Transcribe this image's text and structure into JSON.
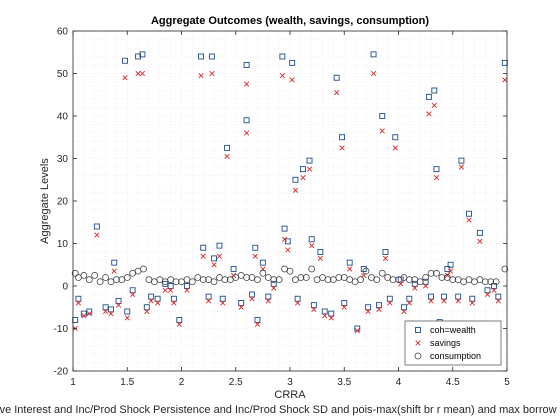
{
  "chart_data": {
    "type": "scatter",
    "title": "Aggregate Outcomes (wealth, savings, consumption)",
    "xlabel": "CRRA",
    "subxlabel": "ave Interest and Inc/Prod Shock Persistence and Inc/Prod Shock SD and pois-max(shift br r mean) and max borrow",
    "ylabel": "Aggregate Levels",
    "xlim": [
      1,
      5
    ],
    "ylim": [
      -20,
      60
    ],
    "xticks": [
      1,
      1.5,
      2,
      2.5,
      3,
      3.5,
      4,
      4.5,
      5
    ],
    "xtick_labels": [
      "1",
      "1.5",
      "2",
      "2.5",
      "3",
      "3.5",
      "4",
      "4.5",
      "5"
    ],
    "yticks": [
      -20,
      -10,
      0,
      10,
      20,
      30,
      40,
      50,
      60
    ],
    "ytick_labels": [
      "-20",
      "-10",
      "0",
      "10",
      "20",
      "30",
      "40",
      "50",
      "60"
    ],
    "grid": true,
    "legend_position": "bottom-right",
    "series": [
      {
        "name": "coh=wealth",
        "marker": "square",
        "color": "#1f4e8c",
        "points": [
          [
            1.02,
            -8
          ],
          [
            1.05,
            -3
          ],
          [
            1.1,
            -6.5
          ],
          [
            1.15,
            -6
          ],
          [
            1.22,
            14
          ],
          [
            1.3,
            -5
          ],
          [
            1.35,
            -5.5
          ],
          [
            1.38,
            5.5
          ],
          [
            1.42,
            -3.5
          ],
          [
            1.48,
            53
          ],
          [
            1.5,
            -6
          ],
          [
            1.55,
            -1
          ],
          [
            1.6,
            54
          ],
          [
            1.64,
            54.5
          ],
          [
            1.68,
            -5
          ],
          [
            1.72,
            -2.5
          ],
          [
            1.78,
            -3
          ],
          [
            1.85,
            0.5
          ],
          [
            1.9,
            0
          ],
          [
            1.93,
            -3
          ],
          [
            1.98,
            -8
          ],
          [
            2.05,
            0
          ],
          [
            2.18,
            54
          ],
          [
            2.2,
            9
          ],
          [
            2.25,
            -2.5
          ],
          [
            2.28,
            54
          ],
          [
            2.3,
            6.5
          ],
          [
            2.35,
            9.5
          ],
          [
            2.38,
            -3
          ],
          [
            2.42,
            32.5
          ],
          [
            2.48,
            4
          ],
          [
            2.55,
            -4
          ],
          [
            2.6,
            52
          ],
          [
            2.6,
            39
          ],
          [
            2.65,
            -2
          ],
          [
            2.68,
            9
          ],
          [
            2.7,
            -8
          ],
          [
            2.75,
            5.5
          ],
          [
            2.8,
            -2.5
          ],
          [
            2.85,
            0.5
          ],
          [
            2.93,
            54
          ],
          [
            2.95,
            13.5
          ],
          [
            2.98,
            10.5
          ],
          [
            3.02,
            52.5
          ],
          [
            3.05,
            25
          ],
          [
            3.07,
            -3
          ],
          [
            3.12,
            27.5
          ],
          [
            3.18,
            29.5
          ],
          [
            3.2,
            11
          ],
          [
            3.22,
            -4.5
          ],
          [
            3.28,
            8
          ],
          [
            3.32,
            -6
          ],
          [
            3.38,
            -6.5
          ],
          [
            3.43,
            49
          ],
          [
            3.48,
            35
          ],
          [
            3.5,
            -4
          ],
          [
            3.55,
            5.5
          ],
          [
            3.62,
            -10
          ],
          [
            3.68,
            4
          ],
          [
            3.72,
            -5
          ],
          [
            3.77,
            54.5
          ],
          [
            3.82,
            -4.5
          ],
          [
            3.85,
            40
          ],
          [
            3.88,
            8
          ],
          [
            3.92,
            -3
          ],
          [
            3.97,
            35
          ],
          [
            4.02,
            1.5
          ],
          [
            4.05,
            -5
          ],
          [
            4.1,
            -3
          ],
          [
            4.15,
            0.5
          ],
          [
            4.25,
            1
          ],
          [
            4.28,
            44.5
          ],
          [
            4.3,
            -2.5
          ],
          [
            4.33,
            46
          ],
          [
            4.35,
            27.5
          ],
          [
            4.38,
            -8.5
          ],
          [
            4.42,
            -2.5
          ],
          [
            4.45,
            4
          ],
          [
            4.48,
            5
          ],
          [
            4.55,
            -2.5
          ],
          [
            4.58,
            29.5
          ],
          [
            4.65,
            17
          ],
          [
            4.68,
            -3
          ],
          [
            4.75,
            12.5
          ],
          [
            4.82,
            -1
          ],
          [
            4.88,
            0
          ],
          [
            4.92,
            -2.5
          ],
          [
            4.98,
            52.5
          ]
        ]
      },
      {
        "name": "savings",
        "marker": "x",
        "color": "#d62728",
        "points": [
          [
            1.02,
            -10
          ],
          [
            1.05,
            -4
          ],
          [
            1.1,
            -7
          ],
          [
            1.15,
            -6.5
          ],
          [
            1.22,
            12
          ],
          [
            1.3,
            -6
          ],
          [
            1.35,
            -6.5
          ],
          [
            1.38,
            3.5
          ],
          [
            1.42,
            -4.5
          ],
          [
            1.48,
            49
          ],
          [
            1.5,
            -7.5
          ],
          [
            1.55,
            -2
          ],
          [
            1.6,
            50
          ],
          [
            1.64,
            50
          ],
          [
            1.68,
            -6
          ],
          [
            1.72,
            -3.5
          ],
          [
            1.78,
            -4
          ],
          [
            1.85,
            -1
          ],
          [
            1.9,
            -1
          ],
          [
            1.93,
            -4
          ],
          [
            1.98,
            -9
          ],
          [
            2.05,
            -1
          ],
          [
            2.18,
            49.5
          ],
          [
            2.2,
            7
          ],
          [
            2.25,
            -3.5
          ],
          [
            2.28,
            50
          ],
          [
            2.3,
            5
          ],
          [
            2.35,
            7
          ],
          [
            2.38,
            -4
          ],
          [
            2.42,
            30.5
          ],
          [
            2.48,
            2.5
          ],
          [
            2.55,
            -5
          ],
          [
            2.6,
            47.5
          ],
          [
            2.6,
            36
          ],
          [
            2.65,
            -3
          ],
          [
            2.68,
            7
          ],
          [
            2.7,
            -9
          ],
          [
            2.75,
            4
          ],
          [
            2.8,
            -3.5
          ],
          [
            2.85,
            -0.5
          ],
          [
            2.93,
            49.5
          ],
          [
            2.95,
            11
          ],
          [
            2.98,
            8.5
          ],
          [
            3.02,
            48.5
          ],
          [
            3.05,
            22.5
          ],
          [
            3.07,
            -4
          ],
          [
            3.12,
            25.5
          ],
          [
            3.18,
            27.5
          ],
          [
            3.2,
            9.5
          ],
          [
            3.22,
            -5.5
          ],
          [
            3.28,
            6.5
          ],
          [
            3.32,
            -7
          ],
          [
            3.38,
            -7.5
          ],
          [
            3.43,
            45.5
          ],
          [
            3.48,
            32.5
          ],
          [
            3.5,
            -5
          ],
          [
            3.55,
            4
          ],
          [
            3.62,
            -10.5
          ],
          [
            3.68,
            2.5
          ],
          [
            3.72,
            -6
          ],
          [
            3.77,
            50
          ],
          [
            3.82,
            -5.5
          ],
          [
            3.85,
            36.5
          ],
          [
            3.88,
            6.5
          ],
          [
            3.92,
            -4
          ],
          [
            3.97,
            32.5
          ],
          [
            4.02,
            0.5
          ],
          [
            4.05,
            -6
          ],
          [
            4.1,
            -4
          ],
          [
            4.15,
            -0.5
          ],
          [
            4.25,
            0
          ],
          [
            4.28,
            40.5
          ],
          [
            4.3,
            -3.5
          ],
          [
            4.33,
            42.5
          ],
          [
            4.35,
            25.5
          ],
          [
            4.38,
            -9
          ],
          [
            4.42,
            -3.5
          ],
          [
            4.45,
            2.5
          ],
          [
            4.48,
            3.5
          ],
          [
            4.55,
            -3.5
          ],
          [
            4.58,
            28
          ],
          [
            4.65,
            15.5
          ],
          [
            4.68,
            -4
          ],
          [
            4.75,
            10.5
          ],
          [
            4.82,
            -2
          ],
          [
            4.88,
            -1
          ],
          [
            4.92,
            -3.5
          ],
          [
            4.98,
            48.5
          ]
        ]
      },
      {
        "name": "consumption",
        "marker": "circle",
        "color": "#404040",
        "points": [
          [
            1.02,
            3
          ],
          [
            1.05,
            2
          ],
          [
            1.1,
            2.5
          ],
          [
            1.15,
            1.5
          ],
          [
            1.2,
            2.5
          ],
          [
            1.25,
            1
          ],
          [
            1.3,
            2
          ],
          [
            1.35,
            1
          ],
          [
            1.4,
            1.5
          ],
          [
            1.45,
            1.5
          ],
          [
            1.5,
            2
          ],
          [
            1.55,
            3
          ],
          [
            1.6,
            3.5
          ],
          [
            1.65,
            4
          ],
          [
            1.7,
            1.5
          ],
          [
            1.75,
            1
          ],
          [
            1.8,
            1.5
          ],
          [
            1.85,
            1
          ],
          [
            1.9,
            1.5
          ],
          [
            1.95,
            1
          ],
          [
            2.0,
            1
          ],
          [
            2.05,
            1.5
          ],
          [
            2.1,
            1
          ],
          [
            2.15,
            2
          ],
          [
            2.2,
            1.5
          ],
          [
            2.25,
            1.5
          ],
          [
            2.3,
            1
          ],
          [
            2.35,
            2
          ],
          [
            2.4,
            1.5
          ],
          [
            2.45,
            1.5
          ],
          [
            2.5,
            2
          ],
          [
            2.55,
            2.5
          ],
          [
            2.6,
            2
          ],
          [
            2.65,
            2
          ],
          [
            2.7,
            1.5
          ],
          [
            2.75,
            3
          ],
          [
            2.8,
            2
          ],
          [
            2.85,
            1.5
          ],
          [
            2.9,
            1.5
          ],
          [
            2.95,
            4
          ],
          [
            3.0,
            3.5
          ],
          [
            3.05,
            1.5
          ],
          [
            3.1,
            2
          ],
          [
            3.15,
            2
          ],
          [
            3.2,
            4
          ],
          [
            3.25,
            1.5
          ],
          [
            3.3,
            2
          ],
          [
            3.35,
            1.5
          ],
          [
            3.4,
            1.5
          ],
          [
            3.45,
            2
          ],
          [
            3.5,
            2
          ],
          [
            3.55,
            1.5
          ],
          [
            3.6,
            1
          ],
          [
            3.65,
            1.5
          ],
          [
            3.7,
            3.5
          ],
          [
            3.75,
            2
          ],
          [
            3.8,
            1.5
          ],
          [
            3.85,
            3
          ],
          [
            3.9,
            2
          ],
          [
            3.95,
            1.5
          ],
          [
            4.0,
            1.5
          ],
          [
            4.05,
            2
          ],
          [
            4.1,
            1.5
          ],
          [
            4.15,
            1.5
          ],
          [
            4.2,
            1
          ],
          [
            4.25,
            2
          ],
          [
            4.3,
            3
          ],
          [
            4.35,
            3
          ],
          [
            4.4,
            2
          ],
          [
            4.45,
            2
          ],
          [
            4.5,
            1.5
          ],
          [
            4.55,
            1.5
          ],
          [
            4.6,
            1
          ],
          [
            4.65,
            1.5
          ],
          [
            4.7,
            1
          ],
          [
            4.75,
            1.5
          ],
          [
            4.8,
            1
          ],
          [
            4.85,
            1
          ],
          [
            4.9,
            1
          ],
          [
            4.98,
            4
          ]
        ]
      }
    ]
  }
}
